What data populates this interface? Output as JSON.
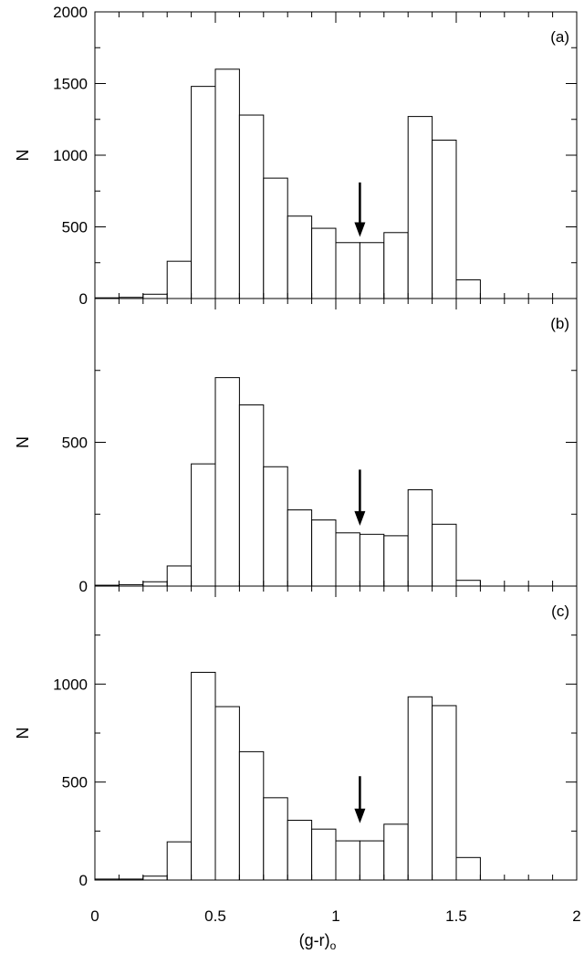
{
  "chart_data": {
    "type": "bar",
    "x_edges": [
      0,
      0.1,
      0.2,
      0.3,
      0.4,
      0.5,
      0.6,
      0.7,
      0.8,
      0.9,
      1.0,
      1.1,
      1.2,
      1.3,
      1.4,
      1.5,
      1.6,
      1.7,
      1.8,
      1.9,
      2.0
    ],
    "xlim": [
      0,
      2
    ],
    "xlabel": "(g-r)",
    "xlabel_subscript": "o",
    "x_ticks": [
      0,
      0.5,
      1,
      1.5,
      2
    ],
    "x_tick_labels": [
      "0",
      "0.5",
      "1",
      "1.5",
      "2"
    ],
    "x_minor_step": 0.1,
    "grid": false,
    "panels": [
      {
        "label": "(a)",
        "ylabel": "N",
        "ylim": [
          0,
          2000
        ],
        "y_ticks": [
          0,
          500,
          1000,
          1500,
          2000
        ],
        "y_tick_labels": [
          "0",
          "500",
          "1000",
          "1500",
          "2000"
        ],
        "values": [
          5,
          8,
          30,
          260,
          1480,
          1600,
          1280,
          840,
          575,
          490,
          390,
          390,
          460,
          1270,
          1105,
          130,
          0,
          0,
          0,
          0
        ],
        "arrow_x": 1.1,
        "arrow_from": 810,
        "arrow_to": 430
      },
      {
        "label": "(b)",
        "ylabel": "N",
        "ylim": [
          0,
          1000
        ],
        "y_ticks": [
          0,
          500
        ],
        "y_tick_labels": [
          "0",
          "500"
        ],
        "values": [
          3,
          5,
          15,
          70,
          425,
          725,
          630,
          415,
          265,
          230,
          185,
          180,
          175,
          335,
          215,
          20,
          0,
          0,
          0,
          0
        ],
        "arrow_x": 1.1,
        "arrow_from": 405,
        "arrow_to": 210
      },
      {
        "label": "(c)",
        "ylabel": "N",
        "ylim": [
          0,
          1500
        ],
        "y_ticks": [
          0,
          500,
          1000
        ],
        "y_tick_labels": [
          "0",
          "500",
          "1000"
        ],
        "values": [
          5,
          5,
          20,
          195,
          1060,
          885,
          655,
          420,
          305,
          260,
          200,
          200,
          285,
          935,
          890,
          115,
          0,
          0,
          0,
          0
        ],
        "arrow_x": 1.1,
        "arrow_from": 530,
        "arrow_to": 290
      }
    ]
  }
}
